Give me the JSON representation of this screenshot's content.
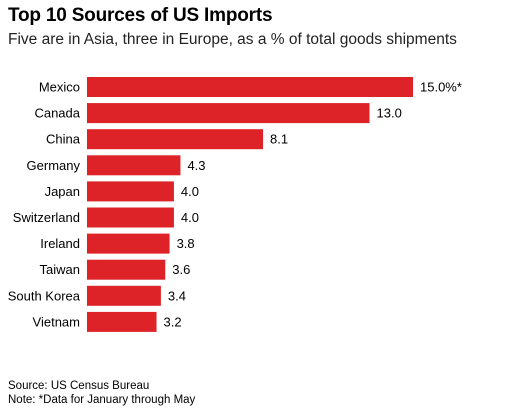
{
  "title": "Top 10 Sources of US Imports",
  "subtitle": "Five are in Asia, three in Europe, as a % of total goods shipments",
  "source": "Source: US Census Bureau",
  "note": "Note: *Data for January through May",
  "colors": {
    "bar": "#dd2327",
    "text": "#000000"
  },
  "chart_data": {
    "type": "bar",
    "orientation": "horizontal",
    "title": "Top 10 Sources of US Imports",
    "subtitle": "Five are in Asia, three in Europe, as a % of total goods shipments",
    "xlabel": "",
    "ylabel": "",
    "categories": [
      "Mexico",
      "Canada",
      "China",
      "Germany",
      "Japan",
      "Switzerland",
      "Ireland",
      "Taiwan",
      "South Korea",
      "Vietnam"
    ],
    "values": [
      15.0,
      13.0,
      8.1,
      4.3,
      4.0,
      4.0,
      3.8,
      3.6,
      3.4,
      3.2
    ],
    "value_labels": [
      "15.0%*",
      "13.0",
      "8.1",
      "4.3",
      "4.0",
      "4.0",
      "3.8",
      "3.6",
      "3.4",
      "3.2"
    ],
    "xlim": [
      0,
      15.0
    ],
    "grid": false,
    "legend": "none"
  }
}
